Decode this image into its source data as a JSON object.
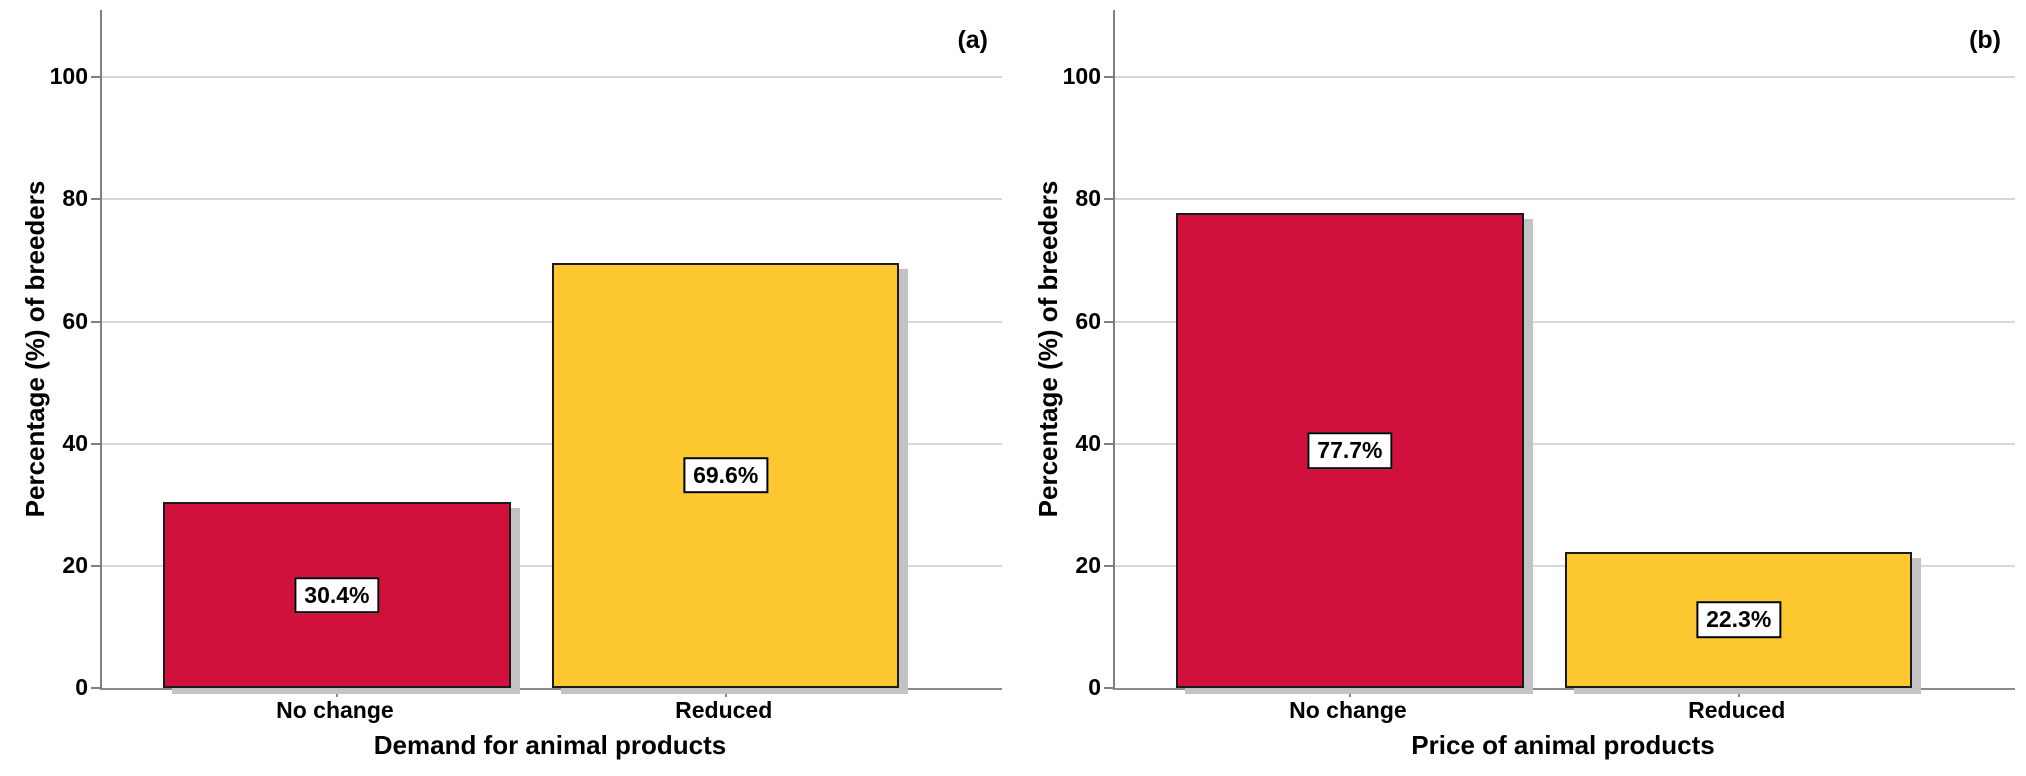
{
  "figure": {
    "background": "#ffffff"
  },
  "style": {
    "bar_red": "#d2103c",
    "bar_yellow": "#fdc72f",
    "bar_border": "#1a1a1a",
    "bar_shadow": "#c3c3c3",
    "gridline": "#d8d8d8",
    "axis_line": "#7f7f7f",
    "text": "#000000",
    "value_label_bg": "#ffffff",
    "value_label_border": "#000000"
  },
  "chart_data": [
    {
      "type": "bar",
      "panel_label": "(a)",
      "title": "",
      "xlabel": "Demand for animal products",
      "ylabel": "Percentage (%) of breeders",
      "categories": [
        "No change",
        "Reduced"
      ],
      "values": [
        30.4,
        69.6
      ],
      "value_labels": [
        "30.4%",
        "69.6%"
      ],
      "bar_colors": [
        "#d2103c",
        "#fdc72f"
      ],
      "yticks": [
        0,
        20,
        40,
        60,
        80,
        100
      ],
      "ylim": [
        0,
        111
      ],
      "grid": true,
      "legend": "none"
    },
    {
      "type": "bar",
      "panel_label": "(b)",
      "title": "",
      "xlabel": "Price of animal products",
      "ylabel": "Percentage (%) of breeders",
      "categories": [
        "No change",
        "Reduced"
      ],
      "values": [
        77.7,
        22.3
      ],
      "value_labels": [
        "77.7%",
        "22.3%"
      ],
      "bar_colors": [
        "#d2103c",
        "#fdc72f"
      ],
      "yticks": [
        0,
        20,
        40,
        60,
        80,
        100
      ],
      "ylim": [
        0,
        111
      ],
      "grid": true,
      "legend": "none"
    }
  ]
}
